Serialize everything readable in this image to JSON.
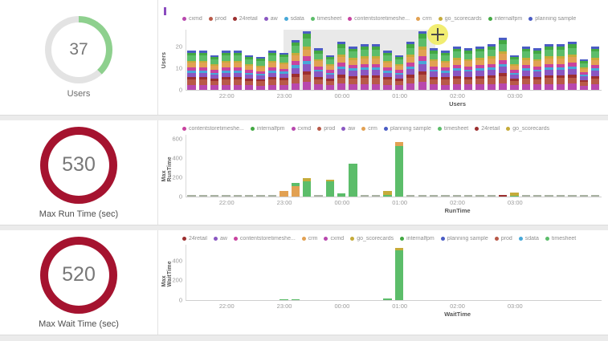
{
  "gauges": [
    {
      "value": "37",
      "label": "Users"
    },
    {
      "value": "530",
      "label": "Max Run Time (sec)"
    },
    {
      "value": "520",
      "label": "Max Wait Time (sec)"
    }
  ],
  "gauge_styles": [
    {
      "style": "arc",
      "fraction": 0.38,
      "ring_color": "#8ed08e",
      "track_color": "#e3e3e3"
    },
    {
      "style": "full",
      "fraction": 1,
      "ring_color": "#a5132f",
      "track_color": "#a5132f"
    },
    {
      "style": "full",
      "fraction": 1,
      "ring_color": "#a5132f",
      "track_color": "#a5132f"
    }
  ],
  "series_colors": {
    "cxmd": "#b848ae",
    "prod": "#b85948",
    "24retail": "#9c2f2f",
    "aw": "#8a57c2",
    "sdata": "#47a8d8",
    "timesheet": "#5cbd6a",
    "contentstoretimeshe...": "#c8439f",
    "crm": "#e2a153",
    "go_scorecards": "#c5ab3a",
    "internalfpm": "#43a843",
    "planning sample": "#4a5cc4",
    "baseline": "#a9b2a2"
  },
  "chart_data": [
    {
      "type": "bar",
      "stacked": true,
      "ylabel": "Users",
      "xlabel": "Users",
      "ylim": [
        0,
        28
      ],
      "yticks": [
        0,
        10,
        20
      ],
      "n_slots": 36,
      "xticks": [
        {
          "label": "22:00",
          "slot": 3
        },
        {
          "label": "23:00",
          "slot": 8
        },
        {
          "label": "00:00",
          "slot": 13
        },
        {
          "label": "01:00",
          "slot": 18
        },
        {
          "label": "02:00",
          "slot": 23
        },
        {
          "label": "03:00",
          "slot": 28
        }
      ],
      "legend": [
        "cxmd",
        "prod",
        "24retail",
        "aw",
        "sdata",
        "timesheet",
        "contentstoretimeshe...",
        "crm",
        "go_scorecards",
        "internalfpm",
        "planning sample"
      ],
      "stack_order": [
        "cxmd",
        "prod",
        "24retail",
        "aw",
        "sdata",
        "contentstoretimeshe...",
        "crm",
        "go_scorecards",
        "timesheet",
        "internalfpm",
        "planning sample"
      ],
      "stack_fractions": [
        0.13,
        0.13,
        0.06,
        0.12,
        0.05,
        0.08,
        0.12,
        0.05,
        0.14,
        0.07,
        0.05
      ],
      "totals": [
        18,
        18,
        16,
        18,
        18,
        16,
        15,
        18,
        17,
        23,
        27,
        19,
        16,
        22,
        20,
        21,
        21,
        18,
        16,
        22,
        27,
        19,
        18,
        20,
        19,
        20,
        21,
        24,
        16,
        20,
        19,
        21,
        21,
        22,
        14,
        20
      ],
      "selection": {
        "from": 0.235,
        "to": 0.6
      },
      "cursor": {
        "x": 0.605
      }
    },
    {
      "type": "bar",
      "ylabel": "Max RunTime",
      "xlabel": "RunTime",
      "ylim": [
        0,
        640
      ],
      "yticks": [
        0,
        200,
        400,
        600
      ],
      "n_slots": 36,
      "xticks": [
        {
          "label": "22:00",
          "slot": 3
        },
        {
          "label": "23:00",
          "slot": 8
        },
        {
          "label": "00:00",
          "slot": 13
        },
        {
          "label": "01:00",
          "slot": 18
        },
        {
          "label": "02:00",
          "slot": 23
        },
        {
          "label": "03:00",
          "slot": 28
        }
      ],
      "legend": [
        "contentstoretimeshe...",
        "internalfpm",
        "cxmd",
        "prod",
        "aw",
        "crm",
        "planning sample",
        "timesheet",
        "24retail",
        "go_scorecards"
      ],
      "baseline": 8,
      "bars": [
        {
          "slot": 8,
          "segments": [
            [
              "crm",
              55
            ]
          ]
        },
        {
          "slot": 9,
          "segments": [
            [
              "crm",
              110
            ],
            [
              "timesheet",
              30
            ]
          ]
        },
        {
          "slot": 10,
          "segments": [
            [
              "timesheet",
              160
            ],
            [
              "go_scorecards",
              25
            ]
          ]
        },
        {
          "slot": 12,
          "segments": [
            [
              "timesheet",
              155
            ],
            [
              "go_scorecards",
              20
            ]
          ]
        },
        {
          "slot": 13,
          "segments": [
            [
              "timesheet",
              35
            ]
          ]
        },
        {
          "slot": 14,
          "segments": [
            [
              "timesheet",
              340
            ]
          ]
        },
        {
          "slot": 17,
          "segments": [
            [
              "timesheet",
              20
            ],
            [
              "go_scorecards",
              40
            ]
          ]
        },
        {
          "slot": 18,
          "segments": [
            [
              "timesheet",
              520
            ],
            [
              "crm",
              40
            ]
          ]
        },
        {
          "slot": 27,
          "segments": [
            [
              "24retail",
              20
            ]
          ]
        },
        {
          "slot": 28,
          "segments": [
            [
              "timesheet",
              10
            ],
            [
              "go_scorecards",
              30
            ]
          ]
        }
      ]
    },
    {
      "type": "bar",
      "ylabel": "Max WaitTime",
      "xlabel": "WaitTime",
      "ylim": [
        0,
        560
      ],
      "yticks": [
        0,
        200,
        400
      ],
      "n_slots": 36,
      "xticks": [
        {
          "label": "22:00",
          "slot": 3
        },
        {
          "label": "23:00",
          "slot": 8
        },
        {
          "label": "00:00",
          "slot": 13
        },
        {
          "label": "01:00",
          "slot": 18
        },
        {
          "label": "02:00",
          "slot": 23
        },
        {
          "label": "03:00",
          "slot": 28
        }
      ],
      "legend": [
        "24retail",
        "aw",
        "contentstoretimeshe...",
        "crm",
        "cxmd",
        "go_scorecards",
        "internalfpm",
        "planning sample",
        "prod",
        "sdata",
        "timesheet"
      ],
      "baseline": 0,
      "bars": [
        {
          "slot": 8,
          "segments": [
            [
              "timesheet",
              10
            ]
          ]
        },
        {
          "slot": 9,
          "segments": [
            [
              "timesheet",
              12
            ]
          ]
        },
        {
          "slot": 17,
          "segments": [
            [
              "timesheet",
              15
            ]
          ]
        },
        {
          "slot": 18,
          "segments": [
            [
              "timesheet",
              495
            ],
            [
              "go_scorecards",
              25
            ]
          ]
        }
      ]
    }
  ]
}
